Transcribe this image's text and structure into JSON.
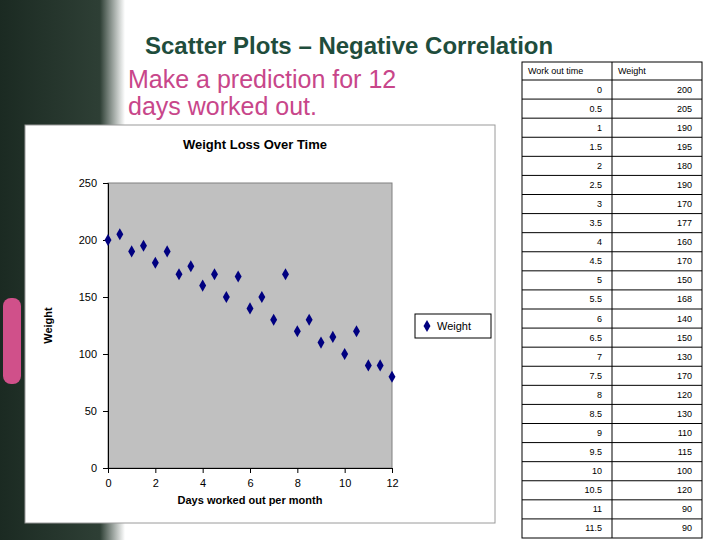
{
  "slide": {
    "title": "Scatter Plots – Negative Correlation",
    "prompt": "Make a prediction for 12 days worked out."
  },
  "chart_data": {
    "type": "scatter",
    "title": "Weight Loss Over Time",
    "x_label": "Days worked out per month",
    "y_label": "Weight",
    "x": [
      0,
      0.5,
      1,
      1.5,
      2,
      2.5,
      3,
      3.5,
      4,
      4.5,
      5,
      5.5,
      6,
      6.5,
      7,
      7.5,
      8,
      8.5,
      9,
      9.5,
      10,
      10.5,
      11,
      11.5,
      12
    ],
    "series": [
      {
        "name": "Weight",
        "color": "#000080",
        "marker": "diamond",
        "values": [
          200,
          205,
          190,
          195,
          180,
          190,
          170,
          177,
          160,
          170,
          150,
          168,
          140,
          150,
          130,
          170,
          120,
          130,
          110,
          115,
          100,
          120,
          90,
          90,
          80
        ]
      }
    ],
    "xlim": [
      0,
      12
    ],
    "xticks": [
      0,
      2,
      4,
      6,
      8,
      10,
      12
    ],
    "ylim": [
      0,
      250
    ],
    "yticks": [
      0,
      50,
      100,
      150,
      200,
      250
    ],
    "grid": false,
    "legend": "right"
  },
  "table": {
    "columns": [
      "Work out time",
      "Weight"
    ],
    "rows": [
      [
        0,
        200
      ],
      [
        0.5,
        205
      ],
      [
        1,
        190
      ],
      [
        1.5,
        195
      ],
      [
        2,
        180
      ],
      [
        2.5,
        190
      ],
      [
        3,
        170
      ],
      [
        3.5,
        177
      ],
      [
        4,
        160
      ],
      [
        4.5,
        170
      ],
      [
        5,
        150
      ],
      [
        5.5,
        168
      ],
      [
        6,
        140
      ],
      [
        6.5,
        150
      ],
      [
        7,
        130
      ],
      [
        7.5,
        170
      ],
      [
        8,
        120
      ],
      [
        8.5,
        130
      ],
      [
        9,
        110
      ],
      [
        9.5,
        115
      ],
      [
        10,
        100
      ],
      [
        10.5,
        120
      ],
      [
        11,
        90
      ],
      [
        11.5,
        90
      ]
    ]
  }
}
